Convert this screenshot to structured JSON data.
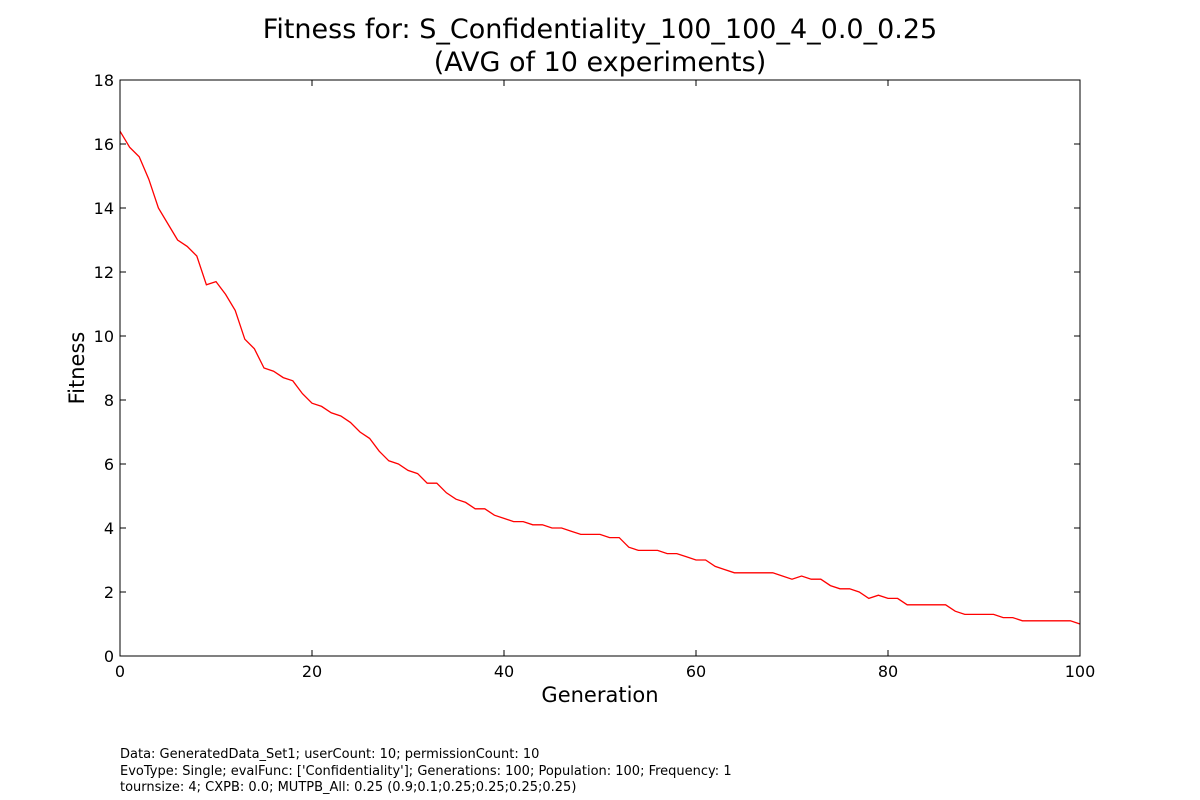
{
  "chart_data": {
    "type": "line",
    "title_line1": "Fitness for: S_Confidentiality_100_100_4_0.0_0.25",
    "title_line2": "(AVG of 10 experiments)",
    "xlabel": "Generation",
    "ylabel": "Fitness",
    "xlim": [
      0,
      100
    ],
    "ylim": [
      0,
      18
    ],
    "xticks": [
      0,
      20,
      40,
      60,
      80,
      100
    ],
    "yticks": [
      0,
      2,
      4,
      6,
      8,
      10,
      12,
      14,
      16,
      18
    ],
    "grid": false,
    "series": [
      {
        "color": "#ff0000",
        "x": [
          0,
          1,
          2,
          3,
          4,
          5,
          6,
          7,
          8,
          9,
          10,
          11,
          12,
          13,
          14,
          15,
          16,
          17,
          18,
          19,
          20,
          21,
          22,
          23,
          24,
          25,
          26,
          27,
          28,
          29,
          30,
          31,
          32,
          33,
          34,
          35,
          36,
          37,
          38,
          39,
          40,
          41,
          42,
          43,
          44,
          45,
          46,
          47,
          48,
          49,
          50,
          51,
          52,
          53,
          54,
          55,
          56,
          57,
          58,
          59,
          60,
          61,
          62,
          63,
          64,
          65,
          66,
          67,
          68,
          69,
          70,
          71,
          72,
          73,
          74,
          75,
          76,
          77,
          78,
          79,
          80,
          81,
          82,
          83,
          84,
          85,
          86,
          87,
          88,
          89,
          90,
          91,
          92,
          93,
          94,
          95,
          96,
          97,
          98,
          99,
          100
        ],
        "y": [
          16.4,
          15.9,
          15.6,
          14.9,
          14.0,
          13.5,
          13.0,
          12.8,
          12.5,
          11.6,
          11.7,
          11.3,
          10.8,
          9.9,
          9.6,
          9.0,
          8.9,
          8.7,
          8.6,
          8.2,
          7.9,
          7.8,
          7.6,
          7.5,
          7.3,
          7.0,
          6.8,
          6.4,
          6.1,
          6.0,
          5.8,
          5.7,
          5.4,
          5.4,
          5.1,
          4.9,
          4.8,
          4.6,
          4.6,
          4.4,
          4.3,
          4.2,
          4.2,
          4.1,
          4.1,
          4.0,
          4.0,
          3.9,
          3.8,
          3.8,
          3.8,
          3.7,
          3.7,
          3.4,
          3.3,
          3.3,
          3.3,
          3.2,
          3.2,
          3.1,
          3.0,
          3.0,
          2.8,
          2.7,
          2.6,
          2.6,
          2.6,
          2.6,
          2.6,
          2.5,
          2.4,
          2.5,
          2.4,
          2.4,
          2.2,
          2.1,
          2.1,
          2.0,
          1.8,
          1.9,
          1.8,
          1.8,
          1.6,
          1.6,
          1.6,
          1.6,
          1.6,
          1.4,
          1.3,
          1.3,
          1.3,
          1.3,
          1.2,
          1.2,
          1.1,
          1.1,
          1.1,
          1.1,
          1.1,
          1.1,
          1.0
        ]
      }
    ]
  },
  "footer": {
    "line1": "Data: GeneratedData_Set1; userCount: 10; permissionCount: 10",
    "line2": "EvoType: Single; evalFunc: ['Confidentiality']; Generations: 100; Population: 100; Frequency: 1",
    "line3": "tournsize: 4; CXPB: 0.0; MUTPB_All: 0.25 (0.9;0.1;0.25;0.25;0.25;0.25)"
  }
}
